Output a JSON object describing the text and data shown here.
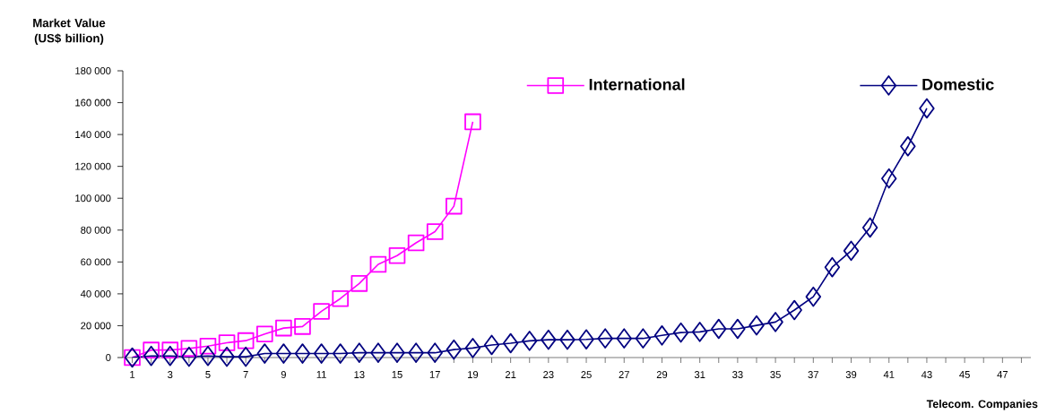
{
  "chart_data": {
    "type": "line",
    "xlabel": "Telecom. Companies",
    "ylabel": "Market Value (US$ billion)",
    "categories": [
      "1",
      null,
      "3",
      null,
      "5",
      null,
      "7",
      null,
      "9",
      null,
      "11",
      null,
      "13",
      null,
      "15",
      null,
      "17",
      null,
      "19",
      null,
      "21",
      null,
      "23",
      null,
      "25",
      null,
      "27",
      null,
      "29",
      null,
      "31",
      null,
      "33",
      null,
      "35",
      null,
      "37",
      null,
      "39",
      null,
      "41",
      null,
      "43",
      null,
      "45",
      null,
      "47",
      null
    ],
    "ylim": [
      0,
      180000
    ],
    "yticks": [
      {
        "value": 0,
        "label": "0"
      },
      {
        "value": 20000,
        "label": "20 000"
      },
      {
        "value": 40000,
        "label": "40 000"
      },
      {
        "value": 60000,
        "label": "60 000"
      },
      {
        "value": 80000,
        "label": "80 000"
      },
      {
        "value": 100000,
        "label": "100 000"
      },
      {
        "value": 120000,
        "label": "120 000"
      },
      {
        "value": 140000,
        "label": "140 000"
      },
      {
        "value": 160000,
        "label": "160 000"
      },
      {
        "value": 180000,
        "label": "180 000"
      }
    ],
    "grid": false,
    "legend": "top right",
    "series": [
      {
        "name": "International",
        "color": "#ff00ff",
        "marker": "square",
        "values": [
          0,
          4700,
          4700,
          5700,
          7200,
          9300,
          10600,
          14800,
          18500,
          19500,
          29000,
          37000,
          46500,
          58500,
          64000,
          72000,
          79000,
          95000,
          148000,
          null,
          null,
          null,
          null,
          null,
          null,
          null,
          null,
          null,
          null,
          null,
          null,
          null,
          null,
          null,
          null,
          null,
          null,
          null,
          null,
          null,
          null,
          null,
          null,
          null,
          null,
          null,
          null,
          null
        ]
      },
      {
        "name": "Domestic",
        "color": "#000080",
        "marker": "diamond",
        "values": [
          0,
          1000,
          1000,
          500,
          1000,
          500,
          500,
          2500,
          2500,
          2500,
          2500,
          2500,
          3000,
          3000,
          3000,
          3000,
          3000,
          5000,
          6000,
          7900,
          9000,
          10500,
          11200,
          11200,
          11400,
          12000,
          12000,
          12000,
          13900,
          15700,
          16100,
          18000,
          18000,
          20200,
          22300,
          29800,
          38200,
          56700,
          67000,
          81600,
          112400,
          132600,
          156400,
          null,
          null,
          null,
          null,
          null
        ]
      }
    ]
  }
}
